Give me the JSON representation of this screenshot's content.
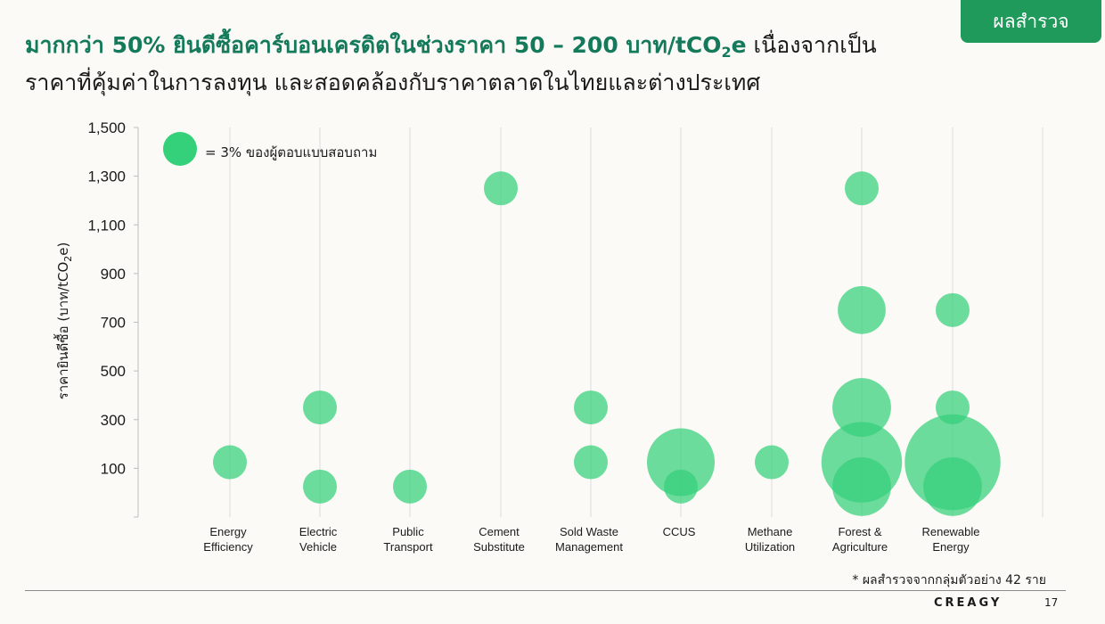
{
  "badge": "ผลสำรวจ",
  "headline": {
    "highlight_pre": "มากกว่า 50% ยินดีซื้อคาร์บอนเครดิตในช่วงราคา 50 – 200 บาท/tCO",
    "highlight_sub": "2",
    "highlight_post": "e",
    "rest_line1": " เนื่องจากเป็น",
    "line2": "ราคาที่คุ้มค่าในการลงทุน และสอดคล้องกับราคาตลาดในไทยและต่างประเทศ"
  },
  "legend": {
    "label": "= 3% ของผู้ตอบแบบสอบถาม",
    "color": "#34d07a"
  },
  "footnote": "* ผลสำรวจจากกลุ่มตัวอย่าง 42 ราย",
  "footer": {
    "brand": "CREAGY",
    "page": "17"
  },
  "chart_data": {
    "type": "scatter",
    "subtype": "bubble",
    "ylabel_main": "ราคายินดีซื้อ (บาท/tCO",
    "ylabel_sub": "2",
    "ylabel_end": "e)",
    "ylim": [
      -100,
      1500
    ],
    "yticks": [
      "100",
      "300",
      "500",
      "700",
      "900",
      "1,100",
      "1,300",
      "1,500"
    ],
    "ytick_values": [
      100,
      300,
      500,
      700,
      900,
      1100,
      1300,
      1500
    ],
    "bubble_color": "#34d07a",
    "bubble_opacity": 0.72,
    "legend_unit_percent": 3,
    "categories": [
      [
        "Energy",
        "Efficiency"
      ],
      [
        "Electric",
        "Vehicle"
      ],
      [
        "Public",
        "Transport"
      ],
      [
        "Cement",
        "Substitute"
      ],
      [
        "Sold Waste",
        "Management"
      ],
      [
        "CCUS"
      ],
      [
        "Methane",
        "Utilization"
      ],
      [
        "Forest &",
        "Agriculture"
      ],
      [
        "Renewable",
        "Energy"
      ]
    ],
    "points": [
      {
        "category": 0,
        "y": 125,
        "percent": 3
      },
      {
        "category": 1,
        "y": 350,
        "percent": 3
      },
      {
        "category": 1,
        "y": 25,
        "percent": 3
      },
      {
        "category": 2,
        "y": 25,
        "percent": 3
      },
      {
        "category": 3,
        "y": 1250,
        "percent": 3
      },
      {
        "category": 4,
        "y": 350,
        "percent": 3
      },
      {
        "category": 4,
        "y": 125,
        "percent": 3
      },
      {
        "category": 5,
        "y": 125,
        "percent": 12
      },
      {
        "category": 5,
        "y": 25,
        "percent": 3
      },
      {
        "category": 6,
        "y": 125,
        "percent": 3
      },
      {
        "category": 7,
        "y": 1250,
        "percent": 3
      },
      {
        "category": 7,
        "y": 750,
        "percent": 6
      },
      {
        "category": 7,
        "y": 350,
        "percent": 9
      },
      {
        "category": 7,
        "y": 125,
        "percent": 17
      },
      {
        "category": 7,
        "y": 25,
        "percent": 9
      },
      {
        "category": 8,
        "y": 750,
        "percent": 3
      },
      {
        "category": 8,
        "y": 350,
        "percent": 3
      },
      {
        "category": 8,
        "y": 125,
        "percent": 24
      },
      {
        "category": 8,
        "y": 25,
        "percent": 9
      }
    ]
  }
}
